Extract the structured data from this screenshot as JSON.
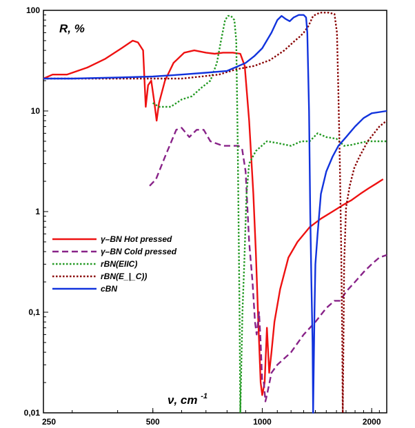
{
  "chart_data": {
    "type": "line",
    "title": "",
    "ylabel": "R, %",
    "xlabel_main": "ν, cm",
    "xlabel_sup": "-1",
    "xscale": "log",
    "yscale": "log",
    "xlim": [
      250,
      2200
    ],
    "ylim": [
      0.01,
      100
    ],
    "grid": false,
    "legend_position": "middle-left",
    "x_ticks": [
      {
        "value": 250,
        "label": "250"
      },
      {
        "value": 500,
        "label": "500"
      },
      {
        "value": 1000,
        "label": "1000"
      },
      {
        "value": 2000,
        "label": "2000"
      }
    ],
    "y_ticks": [
      {
        "value": 0.01,
        "label": "0,01"
      },
      {
        "value": 0.1,
        "label": "0,1"
      },
      {
        "value": 1,
        "label": "1"
      },
      {
        "value": 10,
        "label": "10"
      },
      {
        "value": 100,
        "label": "100"
      }
    ],
    "series": [
      {
        "name": "γ–BN Hot pressed",
        "color": "#ee1111",
        "dash": "solid",
        "points": [
          [
            250,
            21
          ],
          [
            265,
            23
          ],
          [
            290,
            23
          ],
          [
            330,
            27
          ],
          [
            370,
            33
          ],
          [
            410,
            42
          ],
          [
            440,
            50
          ],
          [
            455,
            48
          ],
          [
            470,
            40
          ],
          [
            478,
            11
          ],
          [
            485,
            18
          ],
          [
            495,
            20
          ],
          [
            505,
            12
          ],
          [
            512,
            8
          ],
          [
            520,
            12
          ],
          [
            540,
            20
          ],
          [
            570,
            30
          ],
          [
            610,
            38
          ],
          [
            650,
            40
          ],
          [
            700,
            38
          ],
          [
            740,
            37
          ],
          [
            780,
            38
          ],
          [
            830,
            38
          ],
          [
            870,
            37
          ],
          [
            895,
            28
          ],
          [
            920,
            8
          ],
          [
            945,
            1.5
          ],
          [
            960,
            0.4
          ],
          [
            975,
            0.08
          ],
          [
            990,
            0.02
          ],
          [
            1000,
            0.015
          ],
          [
            1015,
            0.02
          ],
          [
            1030,
            0.07
          ],
          [
            1045,
            0.025
          ],
          [
            1060,
            0.04
          ],
          [
            1080,
            0.08
          ],
          [
            1120,
            0.17
          ],
          [
            1180,
            0.35
          ],
          [
            1250,
            0.5
          ],
          [
            1350,
            0.7
          ],
          [
            1450,
            0.85
          ],
          [
            1560,
            1.0
          ],
          [
            1660,
            1.15
          ],
          [
            1760,
            1.3
          ],
          [
            1860,
            1.5
          ],
          [
            1960,
            1.7
          ],
          [
            2060,
            1.9
          ],
          [
            2150,
            2.1
          ]
        ]
      },
      {
        "name": "γ–BN Cold pressed",
        "color": "#882288",
        "dash": "dashed",
        "points": [
          [
            490,
            1.8
          ],
          [
            510,
            2.1
          ],
          [
            540,
            3.5
          ],
          [
            580,
            6.5
          ],
          [
            600,
            6.8
          ],
          [
            630,
            5.5
          ],
          [
            660,
            6.5
          ],
          [
            690,
            6.5
          ],
          [
            720,
            5
          ],
          [
            780,
            4.5
          ],
          [
            860,
            4.5
          ],
          [
            880,
            4.2
          ],
          [
            900,
            2.5
          ],
          [
            920,
            0.5
          ],
          [
            940,
            0.2
          ],
          [
            955,
            0.08
          ],
          [
            965,
            0.06
          ],
          [
            980,
            0.1
          ],
          [
            990,
            0.05
          ],
          [
            1000,
            0.02
          ],
          [
            1010,
            0.02
          ],
          [
            1020,
            0.013
          ],
          [
            1030,
            0.015
          ],
          [
            1060,
            0.025
          ],
          [
            1100,
            0.03
          ],
          [
            1200,
            0.04
          ],
          [
            1300,
            0.06
          ],
          [
            1400,
            0.08
          ],
          [
            1500,
            0.11
          ],
          [
            1580,
            0.13
          ],
          [
            1640,
            0.13
          ],
          [
            1700,
            0.16
          ],
          [
            1800,
            0.2
          ],
          [
            1900,
            0.25
          ],
          [
            2000,
            0.3
          ],
          [
            2100,
            0.35
          ],
          [
            2200,
            0.37
          ]
        ]
      },
      {
        "name": "rBN(E||C)",
        "color": "#229922",
        "dash": "dotted",
        "points": [
          [
            500,
            12
          ],
          [
            520,
            11
          ],
          [
            560,
            11
          ],
          [
            600,
            13
          ],
          [
            640,
            14
          ],
          [
            680,
            17
          ],
          [
            720,
            20
          ],
          [
            750,
            30
          ],
          [
            770,
            50
          ],
          [
            790,
            80
          ],
          [
            805,
            88
          ],
          [
            820,
            88
          ],
          [
            838,
            80
          ],
          [
            848,
            50
          ],
          [
            856,
            5
          ],
          [
            862,
            0.5
          ],
          [
            866,
            0.1
          ],
          [
            870,
            0.01
          ],
          [
            882,
            0.1
          ],
          [
            892,
            0.3
          ],
          [
            905,
            1.5
          ],
          [
            920,
            3
          ],
          [
            960,
            4
          ],
          [
            1030,
            5
          ],
          [
            1100,
            4.8
          ],
          [
            1200,
            4.5
          ],
          [
            1280,
            5
          ],
          [
            1350,
            5
          ],
          [
            1420,
            6
          ],
          [
            1500,
            5.5
          ],
          [
            1600,
            5.3
          ],
          [
            1680,
            4.5
          ],
          [
            1760,
            4.6
          ],
          [
            1850,
            4.8
          ],
          [
            1950,
            5
          ],
          [
            2100,
            5
          ],
          [
            2200,
            5
          ]
        ]
      },
      {
        "name": "rBN(E_|_C))",
        "color": "#880000",
        "dash": "dotted",
        "points": [
          [
            250,
            21
          ],
          [
            300,
            21
          ],
          [
            400,
            21
          ],
          [
            500,
            21
          ],
          [
            600,
            21
          ],
          [
            680,
            22
          ],
          [
            760,
            23
          ],
          [
            850,
            26
          ],
          [
            950,
            28
          ],
          [
            1050,
            32
          ],
          [
            1150,
            40
          ],
          [
            1230,
            50
          ],
          [
            1270,
            55
          ],
          [
            1300,
            60
          ],
          [
            1340,
            70
          ],
          [
            1380,
            88
          ],
          [
            1440,
            95
          ],
          [
            1520,
            95
          ],
          [
            1580,
            92
          ],
          [
            1605,
            60
          ],
          [
            1620,
            15
          ],
          [
            1635,
            3
          ],
          [
            1648,
            0.5
          ],
          [
            1660,
            0.05
          ],
          [
            1665,
            0.01
          ],
          [
            1672,
            0.05
          ],
          [
            1680,
            0.3
          ],
          [
            1700,
            1.1
          ],
          [
            1740,
            1.8
          ],
          [
            1790,
            2.7
          ],
          [
            1850,
            3.5
          ],
          [
            1950,
            5
          ],
          [
            2100,
            7
          ],
          [
            2200,
            8
          ]
        ]
      },
      {
        "name": "cBN",
        "color": "#1133dd",
        "dash": "solid",
        "points": [
          [
            250,
            21
          ],
          [
            300,
            21
          ],
          [
            400,
            21.5
          ],
          [
            500,
            22
          ],
          [
            600,
            23
          ],
          [
            700,
            24
          ],
          [
            800,
            25
          ],
          [
            900,
            30
          ],
          [
            950,
            35
          ],
          [
            1000,
            42
          ],
          [
            1060,
            60
          ],
          [
            1100,
            80
          ],
          [
            1130,
            88
          ],
          [
            1160,
            82
          ],
          [
            1190,
            78
          ],
          [
            1220,
            85
          ],
          [
            1260,
            90
          ],
          [
            1300,
            90
          ],
          [
            1320,
            85
          ],
          [
            1330,
            60
          ],
          [
            1345,
            10
          ],
          [
            1355,
            1
          ],
          [
            1365,
            0.2
          ],
          [
            1375,
            0.05
          ],
          [
            1380,
            0.01
          ],
          [
            1392,
            0.1
          ],
          [
            1400,
            0.3
          ],
          [
            1420,
            0.6
          ],
          [
            1450,
            1.5
          ],
          [
            1500,
            2.5
          ],
          [
            1560,
            3.5
          ],
          [
            1620,
            4.5
          ],
          [
            1700,
            5.5
          ],
          [
            1800,
            7
          ],
          [
            1900,
            8.5
          ],
          [
            2000,
            9.5
          ],
          [
            2200,
            10
          ]
        ]
      }
    ],
    "legend": [
      {
        "text": "γ–BN Hot pressed"
      },
      {
        "text": "γ–BN Cold pressed"
      },
      {
        "text": "rBN(EIIC)"
      },
      {
        "text": "rBN(E_|_C))"
      },
      {
        "text": "cBN"
      }
    ]
  }
}
